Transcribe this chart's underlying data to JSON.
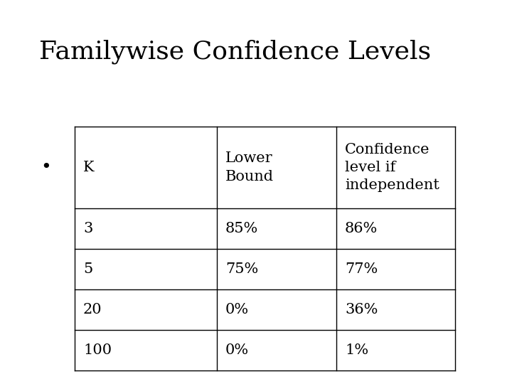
{
  "title": "Familywise Confidence Levels",
  "title_fontsize": 26,
  "bullet_char": "•",
  "table_headers": [
    "K",
    "Lower\nBound",
    "Confidence\nlevel if\nindependent"
  ],
  "table_rows": [
    [
      "3",
      "85%",
      "86%"
    ],
    [
      "5",
      "75%",
      "77%"
    ],
    [
      "20",
      "0%",
      "36%"
    ],
    [
      "100",
      "0%",
      "1%"
    ]
  ],
  "background_color": "#ffffff",
  "text_color": "#000000",
  "table_font_size": 15,
  "header_font_size": 15,
  "line_color": "#000000",
  "bullet_font_size": 18,
  "fig_width": 7.2,
  "fig_height": 5.4,
  "dpi": 100
}
